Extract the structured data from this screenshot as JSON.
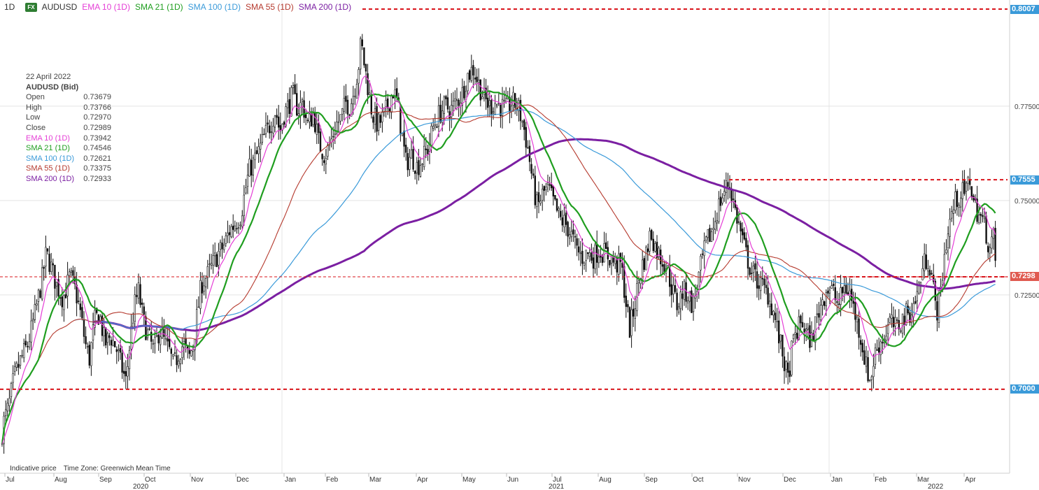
{
  "header": {
    "interval": "1D",
    "fx_badge": "FX",
    "symbol": "AUDUSD",
    "indicators": [
      {
        "label": "EMA 10 (1D)",
        "color": "#e53ed6"
      },
      {
        "label": "SMA 21 (1D)",
        "color": "#1f9e1f"
      },
      {
        "label": "SMA 100 (1D)",
        "color": "#3a9ad9"
      },
      {
        "label": "SMA 55 (1D)",
        "color": "#b53a2e"
      },
      {
        "label": "SMA 200 (1D)",
        "color": "#7b1fa2"
      }
    ]
  },
  "ohlc_panel": {
    "date": "22 April 2022",
    "instrument": "AUDUSD (Bid)",
    "rows": [
      {
        "label": "Open",
        "value": "0.73679",
        "color": "#444444"
      },
      {
        "label": "High",
        "value": "0.73766",
        "color": "#444444"
      },
      {
        "label": "Low",
        "value": "0.72970",
        "color": "#444444"
      },
      {
        "label": "Close",
        "value": "0.72989",
        "color": "#444444"
      },
      {
        "label": "EMA 10 (1D)",
        "value": "0.73942",
        "color": "#e53ed6"
      },
      {
        "label": "SMA 21 (1D)",
        "value": "0.74546",
        "color": "#1f9e1f"
      },
      {
        "label": "SMA 100 (1D)",
        "value": "0.72621",
        "color": "#3a9ad9"
      },
      {
        "label": "SMA 55 (1D)",
        "value": "0.73375",
        "color": "#b53a2e"
      },
      {
        "label": "SMA 200 (1D)",
        "value": "0.72933",
        "color": "#7b1fa2"
      }
    ]
  },
  "footer": {
    "indicative": "Indicative price",
    "timezone": "Time Zone: Greenwich Mean Time"
  },
  "price_labels": [
    {
      "text": "0.8007",
      "value": 0.8007,
      "bg": "#3a9ad9"
    },
    {
      "text": "0.7555",
      "value": 0.7555,
      "bg": "#3a9ad9"
    },
    {
      "text": "0.7298",
      "value": 0.7298,
      "bg": "#e05a50"
    },
    {
      "text": "0.7000",
      "value": 0.7,
      "bg": "#3a9ad9"
    }
  ],
  "chart_data": {
    "type": "candlestick",
    "symbol": "AUDUSD",
    "y_ticks": [
      0.725,
      0.75,
      0.775
    ],
    "y_tick_labels": [
      "0.72500",
      "0.75000",
      "0.77500"
    ],
    "ylim": [
      0.6785,
      0.802
    ],
    "x_months": [
      "Jul",
      "Aug",
      "Sep",
      "Oct",
      "Nov",
      "Dec",
      "Jan",
      "Feb",
      "Mar",
      "Apr",
      "May",
      "Jun",
      "Jul",
      "Aug",
      "Sep",
      "Oct",
      "Nov",
      "Dec",
      "Jan",
      "Feb",
      "Mar",
      "Apr"
    ],
    "x_years": [
      "2020",
      "2021",
      "2022"
    ],
    "horizontal_levels": [
      0.8007,
      0.7555,
      0.7298,
      0.7
    ],
    "price_anchor_points": [
      [
        0,
        0.685
      ],
      [
        6,
        0.692
      ],
      [
        12,
        0.695
      ],
      [
        20,
        0.703
      ],
      [
        30,
        0.708
      ],
      [
        40,
        0.712
      ],
      [
        50,
        0.72
      ],
      [
        60,
        0.729
      ],
      [
        66,
        0.736
      ],
      [
        72,
        0.733
      ],
      [
        80,
        0.728
      ],
      [
        90,
        0.724
      ],
      [
        100,
        0.73
      ],
      [
        108,
        0.726
      ],
      [
        115,
        0.72
      ],
      [
        122,
        0.712
      ],
      [
        128,
        0.708
      ],
      [
        135,
        0.718
      ],
      [
        142,
        0.72
      ],
      [
        150,
        0.712
      ],
      [
        158,
        0.714
      ],
      [
        166,
        0.711
      ],
      [
        172,
        0.707
      ],
      [
        180,
        0.702
      ],
      [
        186,
        0.713
      ],
      [
        192,
        0.722
      ],
      [
        198,
        0.726
      ],
      [
        205,
        0.718
      ],
      [
        212,
        0.714
      ],
      [
        220,
        0.71
      ],
      [
        228,
        0.716
      ],
      [
        236,
        0.712
      ],
      [
        242,
        0.71
      ],
      [
        248,
        0.706
      ],
      [
        256,
        0.71
      ],
      [
        262,
        0.712
      ],
      [
        270,
        0.708
      ],
      [
        276,
        0.712
      ],
      [
        282,
        0.72
      ],
      [
        288,
        0.728
      ],
      [
        296,
        0.73
      ],
      [
        304,
        0.733
      ],
      [
        312,
        0.736
      ],
      [
        320,
        0.738
      ],
      [
        328,
        0.742
      ],
      [
        336,
        0.744
      ],
      [
        344,
        0.746
      ],
      [
        350,
        0.752
      ],
      [
        356,
        0.758
      ],
      [
        362,
        0.76
      ],
      [
        370,
        0.763
      ],
      [
        378,
        0.767
      ],
      [
        386,
        0.77
      ],
      [
        394,
        0.774
      ],
      [
        400,
        0.768
      ],
      [
        406,
        0.773
      ],
      [
        412,
        0.775
      ],
      [
        418,
        0.778
      ],
      [
        426,
        0.774
      ],
      [
        432,
        0.776
      ],
      [
        440,
        0.77
      ],
      [
        448,
        0.773
      ],
      [
        456,
        0.765
      ],
      [
        464,
        0.762
      ],
      [
        472,
        0.765
      ],
      [
        480,
        0.77
      ],
      [
        488,
        0.772
      ],
      [
        494,
        0.776
      ],
      [
        500,
        0.775
      ],
      [
        506,
        0.779
      ],
      [
        512,
        0.785
      ],
      [
        516,
        0.792
      ],
      [
        520,
        0.787
      ],
      [
        526,
        0.78
      ],
      [
        532,
        0.773
      ],
      [
        540,
        0.77
      ],
      [
        548,
        0.772
      ],
      [
        556,
        0.776
      ],
      [
        562,
        0.779
      ],
      [
        568,
        0.776
      ],
      [
        574,
        0.768
      ],
      [
        580,
        0.76
      ],
      [
        588,
        0.762
      ],
      [
        596,
        0.759
      ],
      [
        604,
        0.761
      ],
      [
        612,
        0.764
      ],
      [
        620,
        0.77
      ],
      [
        628,
        0.773
      ],
      [
        636,
        0.775
      ],
      [
        644,
        0.774
      ],
      [
        652,
        0.776
      ],
      [
        660,
        0.778
      ],
      [
        668,
        0.783
      ],
      [
        676,
        0.785
      ],
      [
        684,
        0.781
      ],
      [
        692,
        0.777
      ],
      [
        700,
        0.775
      ],
      [
        708,
        0.776
      ],
      [
        716,
        0.775
      ],
      [
        724,
        0.774
      ],
      [
        732,
        0.776
      ],
      [
        740,
        0.775
      ],
      [
        748,
        0.77
      ],
      [
        756,
        0.762
      ],
      [
        762,
        0.754
      ],
      [
        768,
        0.748
      ],
      [
        776,
        0.752
      ],
      [
        784,
        0.753
      ],
      [
        792,
        0.749
      ],
      [
        800,
        0.745
      ],
      [
        808,
        0.744
      ],
      [
        816,
        0.741
      ],
      [
        824,
        0.737
      ],
      [
        832,
        0.735
      ],
      [
        840,
        0.736
      ],
      [
        848,
        0.735
      ],
      [
        856,
        0.737
      ],
      [
        864,
        0.736
      ],
      [
        872,
        0.735
      ],
      [
        880,
        0.733
      ],
      [
        888,
        0.733
      ],
      [
        894,
        0.724
      ],
      [
        900,
        0.716
      ],
      [
        906,
        0.721
      ],
      [
        912,
        0.728
      ],
      [
        918,
        0.733
      ],
      [
        924,
        0.736
      ],
      [
        930,
        0.742
      ],
      [
        936,
        0.738
      ],
      [
        944,
        0.735
      ],
      [
        952,
        0.733
      ],
      [
        960,
        0.727
      ],
      [
        968,
        0.722
      ],
      [
        976,
        0.726
      ],
      [
        984,
        0.725
      ],
      [
        990,
        0.722
      ],
      [
        996,
        0.727
      ],
      [
        1002,
        0.733
      ],
      [
        1010,
        0.739
      ],
      [
        1018,
        0.742
      ],
      [
        1026,
        0.748
      ],
      [
        1034,
        0.752
      ],
      [
        1042,
        0.755
      ],
      [
        1050,
        0.748
      ],
      [
        1058,
        0.742
      ],
      [
        1066,
        0.736
      ],
      [
        1074,
        0.731
      ],
      [
        1082,
        0.729
      ],
      [
        1090,
        0.727
      ],
      [
        1098,
        0.725
      ],
      [
        1106,
        0.72
      ],
      [
        1114,
        0.713
      ],
      [
        1120,
        0.708
      ],
      [
        1126,
        0.702
      ],
      [
        1132,
        0.711
      ],
      [
        1138,
        0.715
      ],
      [
        1146,
        0.718
      ],
      [
        1154,
        0.714
      ],
      [
        1160,
        0.713
      ],
      [
        1166,
        0.718
      ],
      [
        1174,
        0.723
      ],
      [
        1182,
        0.727
      ],
      [
        1190,
        0.726
      ],
      [
        1198,
        0.722
      ],
      [
        1206,
        0.727
      ],
      [
        1214,
        0.726
      ],
      [
        1222,
        0.72
      ],
      [
        1230,
        0.714
      ],
      [
        1238,
        0.706
      ],
      [
        1244,
        0.702
      ],
      [
        1250,
        0.709
      ],
      [
        1256,
        0.712
      ],
      [
        1264,
        0.714
      ],
      [
        1272,
        0.718
      ],
      [
        1280,
        0.716
      ],
      [
        1288,
        0.718
      ],
      [
        1296,
        0.72
      ],
      [
        1304,
        0.721
      ],
      [
        1312,
        0.726
      ],
      [
        1320,
        0.733
      ],
      [
        1326,
        0.735
      ],
      [
        1332,
        0.73
      ],
      [
        1338,
        0.72
      ],
      [
        1344,
        0.725
      ],
      [
        1350,
        0.736
      ],
      [
        1358,
        0.745
      ],
      [
        1366,
        0.75
      ],
      [
        1374,
        0.752
      ],
      [
        1380,
        0.752
      ],
      [
        1386,
        0.756
      ],
      [
        1392,
        0.749
      ],
      [
        1400,
        0.746
      ],
      [
        1408,
        0.743
      ],
      [
        1414,
        0.737
      ],
      [
        1420,
        0.74
      ],
      [
        1424,
        0.73
      ]
    ]
  }
}
